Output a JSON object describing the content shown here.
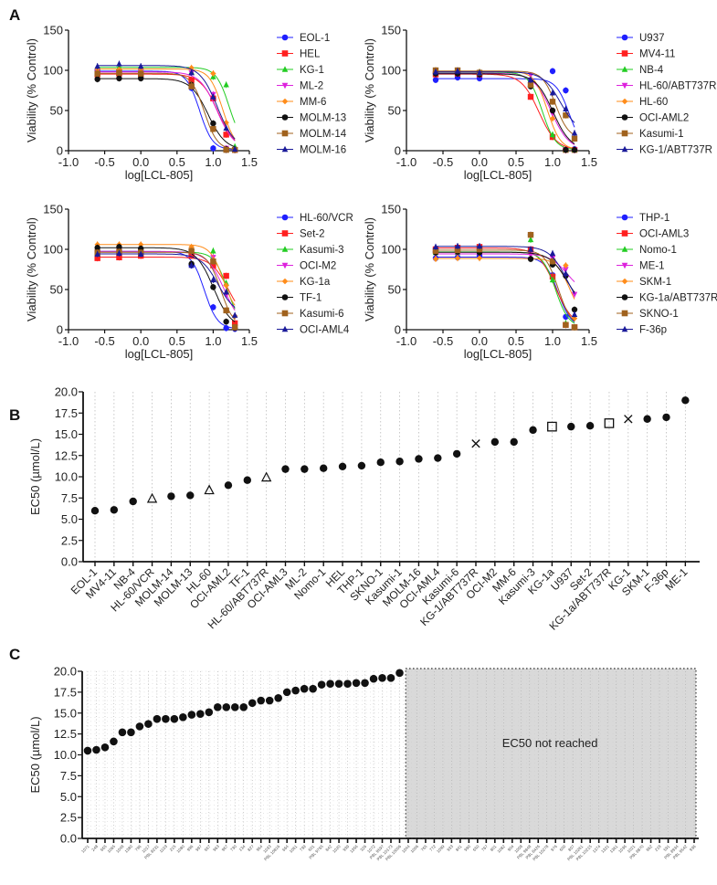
{
  "chart_data": [
    {
      "panel": "A",
      "type": "line",
      "subtype": "dose-response",
      "xlabel": "log[LCL-805]",
      "ylabel": "Viability (% Control)",
      "xlim": [
        -1.0,
        1.5
      ],
      "ylim": [
        0,
        150
      ],
      "xticks": [
        "-1.0",
        "-0.5",
        "0.0",
        "0.5",
        "1.0",
        "1.5"
      ],
      "yticks": [
        "0",
        "50",
        "100",
        "150"
      ],
      "x": [
        -0.6,
        -0.3,
        0.0,
        0.7,
        1.0,
        1.18,
        1.3
      ],
      "legend_position": "right",
      "series": [
        {
          "name": "EOL-1",
          "color": "#1f1fff",
          "marker": "circle",
          "values": [
            100,
            100,
            97,
            78,
            3,
            1,
            1
          ]
        },
        {
          "name": "HEL",
          "color": "#ff1f1f",
          "marker": "square",
          "values": [
            95,
            96,
            95,
            88,
            65,
            20,
            1
          ]
        },
        {
          "name": "KG-1",
          "color": "#22cc22",
          "marker": "triangle",
          "values": [
            104,
            104,
            103,
            98,
            92,
            82,
            5
          ]
        },
        {
          "name": "ML-2",
          "color": "#dd22dd",
          "marker": "triangle-down",
          "values": [
            98,
            98,
            98,
            97,
            70,
            3,
            1
          ]
        },
        {
          "name": "MM-6",
          "color": "#ff8c1a",
          "marker": "diamond",
          "values": [
            102,
            101,
            102,
            103,
            96,
            35,
            1
          ]
        },
        {
          "name": "MOLM-13",
          "color": "#111111",
          "marker": "circle",
          "values": [
            89,
            90,
            90,
            82,
            34,
            2,
            1
          ]
        },
        {
          "name": "MOLM-14",
          "color": "#a0621e",
          "marker": "square",
          "values": [
            96,
            97,
            96,
            80,
            27,
            1,
            1
          ]
        },
        {
          "name": "MOLM-16",
          "color": "#1a1a99",
          "marker": "triangle",
          "values": [
            105,
            108,
            105,
            97,
            67,
            28,
            2
          ]
        }
      ]
    },
    {
      "panel": "A2",
      "type": "line",
      "subtype": "dose-response",
      "xlabel": "log[LCL-805]",
      "ylabel": "Viability (% Control)",
      "xlim": [
        -1.0,
        1.5
      ],
      "ylim": [
        0,
        150
      ],
      "xticks": [
        "-1.0",
        "-0.5",
        "0.0",
        "0.5",
        "1.0",
        "1.5"
      ],
      "yticks": [
        "0",
        "50",
        "100",
        "150"
      ],
      "x": [
        -0.6,
        -0.3,
        0.0,
        0.7,
        1.0,
        1.18,
        1.3
      ],
      "legend_position": "right",
      "series": [
        {
          "name": "U937",
          "color": "#1f1fff",
          "marker": "circle",
          "values": [
            88,
            91,
            90,
            88,
            99,
            75,
            2
          ]
        },
        {
          "name": "MV4-11",
          "color": "#ff1f1f",
          "marker": "square",
          "values": [
            95,
            96,
            95,
            67,
            17,
            1,
            1
          ]
        },
        {
          "name": "NB-4",
          "color": "#22cc22",
          "marker": "triangle",
          "values": [
            97,
            98,
            98,
            82,
            20,
            1,
            1
          ]
        },
        {
          "name": "HL-60/ABT737R",
          "color": "#dd22dd",
          "marker": "triangle-down",
          "values": [
            96,
            97,
            96,
            94,
            46,
            1,
            1
          ]
        },
        {
          "name": "HL-60",
          "color": "#ff8c1a",
          "marker": "diamond",
          "values": [
            100,
            99,
            98,
            83,
            40,
            1,
            1
          ]
        },
        {
          "name": "OCI-AML2",
          "color": "#111111",
          "marker": "circle",
          "values": [
            96,
            96,
            95,
            80,
            50,
            1,
            1
          ]
        },
        {
          "name": "Kasumi-1",
          "color": "#a0621e",
          "marker": "square",
          "values": [
            100,
            100,
            97,
            82,
            61,
            44,
            15
          ]
        },
        {
          "name": "KG-1/ABT737R",
          "color": "#1a1a99",
          "marker": "triangle",
          "values": [
            98,
            99,
            97,
            88,
            72,
            52,
            22
          ]
        }
      ]
    },
    {
      "panel": "A3",
      "type": "line",
      "subtype": "dose-response",
      "xlabel": "log[LCL-805]",
      "ylabel": "Viability (% Control)",
      "xlim": [
        -1.0,
        1.5
      ],
      "ylim": [
        0,
        150
      ],
      "xticks": [
        "-1.0",
        "-0.5",
        "0.0",
        "0.5",
        "1.0",
        "1.5"
      ],
      "yticks": [
        "0",
        "50",
        "100",
        "150"
      ],
      "x": [
        -0.6,
        -0.3,
        0.0,
        0.7,
        1.0,
        1.18,
        1.3
      ],
      "legend_position": "right",
      "series": [
        {
          "name": "HL-60/VCR",
          "color": "#1f1fff",
          "marker": "circle",
          "values": [
            98,
            97,
            97,
            80,
            28,
            2,
            1
          ]
        },
        {
          "name": "Set-2",
          "color": "#ff1f1f",
          "marker": "square",
          "values": [
            89,
            90,
            92,
            92,
            80,
            67,
            8
          ]
        },
        {
          "name": "Kasumi-3",
          "color": "#22cc22",
          "marker": "triangle",
          "values": [
            95,
            97,
            98,
            102,
            98,
            58,
            3
          ]
        },
        {
          "name": "OCI-M2",
          "color": "#dd22dd",
          "marker": "triangle-down",
          "values": [
            97,
            98,
            97,
            97,
            90,
            43,
            2
          ]
        },
        {
          "name": "KG-1a",
          "color": "#ff8c1a",
          "marker": "diamond",
          "values": [
            106,
            106,
            106,
            103,
            86,
            55,
            17
          ]
        },
        {
          "name": "TF-1",
          "color": "#111111",
          "marker": "circle",
          "values": [
            102,
            103,
            101,
            82,
            53,
            10,
            2
          ]
        },
        {
          "name": "Kasumi-6",
          "color": "#a0621e",
          "marker": "square",
          "values": [
            96,
            97,
            96,
            98,
            85,
            24,
            3
          ]
        },
        {
          "name": "OCI-AML4",
          "color": "#1a1a99",
          "marker": "triangle",
          "values": [
            94,
            95,
            94,
            80,
            62,
            47,
            18
          ]
        }
      ]
    },
    {
      "panel": "A4",
      "type": "line",
      "subtype": "dose-response",
      "xlabel": "log[LCL-805]",
      "ylabel": "Viability (% Control)",
      "xlim": [
        -1.0,
        1.5
      ],
      "ylim": [
        0,
        150
      ],
      "xticks": [
        "-1.0",
        "-0.5",
        "0.0",
        "0.5",
        "1.0",
        "1.5"
      ],
      "yticks": [
        "0",
        "50",
        "100",
        "150"
      ],
      "x": [
        -0.6,
        -0.3,
        0.0,
        0.7,
        1.0,
        1.18,
        1.3
      ],
      "legend_position": "right",
      "series": [
        {
          "name": "THP-1",
          "color": "#1f1fff",
          "marker": "circle",
          "values": [
            89,
            90,
            92,
            118,
            68,
            16,
            3
          ]
        },
        {
          "name": "OCI-AML3",
          "color": "#ff1f1f",
          "marker": "square",
          "values": [
            100,
            102,
            103,
            100,
            66,
            6,
            3
          ]
        },
        {
          "name": "Nomo-1",
          "color": "#22cc22",
          "marker": "triangle",
          "values": [
            96,
            96,
            98,
            112,
            62,
            8,
            3
          ]
        },
        {
          "name": "ME-1",
          "color": "#dd22dd",
          "marker": "triangle-down",
          "values": [
            94,
            95,
            94,
            93,
            89,
            75,
            44
          ]
        },
        {
          "name": "SKM-1",
          "color": "#ff8c1a",
          "marker": "diamond",
          "values": [
            88,
            89,
            89,
            88,
            85,
            80,
            14
          ]
        },
        {
          "name": "KG-1a/ABT737R",
          "color": "#111111",
          "marker": "circle",
          "values": [
            96,
            97,
            96,
            88,
            81,
            67,
            25
          ]
        },
        {
          "name": "SKNO-1",
          "color": "#a0621e",
          "marker": "square",
          "values": [
            98,
            99,
            100,
            118,
            85,
            6,
            3
          ]
        },
        {
          "name": "F-36p",
          "color": "#1a1a99",
          "marker": "triangle",
          "values": [
            103,
            104,
            104,
            100,
            95,
            70,
            19
          ]
        }
      ]
    },
    {
      "panel": "B",
      "type": "scatter",
      "ylabel": "EC50 (µmol/L)",
      "xlabel": "",
      "ylim": [
        0,
        20
      ],
      "yticks": [
        "0.0",
        "2.5",
        "5.0",
        "7.5",
        "10.0",
        "12.5",
        "15.0",
        "17.5",
        "20.0"
      ],
      "grid": "vertical-dotted",
      "categories": [
        "EOL-1",
        "MV4-11",
        "NB-4",
        "HL-60/VCR",
        "MOLM-14",
        "MOLM-13",
        "HL-60",
        "OCI-AML2",
        "TF-1",
        "HL-60/ABT737R",
        "OCI-AML3",
        "ML-2",
        "Nomo-1",
        "HEL",
        "THP-1",
        "SKNO-1",
        "Kasumi-1",
        "MOLM-16",
        "OCI-AML4",
        "Kasumi-6",
        "KG-1/ABT737R",
        "OCI-M2",
        "MM-6",
        "Kasumi-3",
        "KG-1a",
        "U937",
        "Set-2",
        "KG-1a/ABT737R",
        "KG-1",
        "SKM-1",
        "F-36p",
        "ME-1"
      ],
      "values": [
        6.0,
        6.1,
        7.1,
        7.4,
        7.7,
        7.8,
        8.4,
        9.0,
        9.6,
        9.9,
        10.9,
        10.9,
        11.0,
        11.2,
        11.3,
        11.7,
        11.8,
        12.1,
        12.2,
        12.7,
        13.9,
        14.1,
        14.1,
        15.5,
        15.9,
        15.9,
        16.0,
        16.3,
        16.8,
        16.8,
        17.0,
        19.0
      ],
      "markers": [
        "circle",
        "circle",
        "circle",
        "triangle-open",
        "circle",
        "circle",
        "triangle-open",
        "circle",
        "circle",
        "triangle-open",
        "circle",
        "circle",
        "circle",
        "circle",
        "circle",
        "circle",
        "circle",
        "circle",
        "circle",
        "circle",
        "cross",
        "circle",
        "circle",
        "circle",
        "square-open",
        "circle",
        "circle",
        "square-open",
        "cross",
        "circle",
        "circle",
        "circle"
      ]
    },
    {
      "panel": "C",
      "type": "scatter",
      "ylabel": "EC50 (µmol/L)",
      "xlabel": "",
      "ylim": [
        0,
        20
      ],
      "yticks": [
        "0.0",
        "2.5",
        "5.0",
        "7.5",
        "10.0",
        "12.5",
        "15.0",
        "17.5",
        "20.0"
      ],
      "grid": "dotted",
      "categories": [
        "1071",
        "248",
        "665",
        "1065",
        "1048",
        "1380",
        "796",
        "1017",
        "PBL 8231",
        "1103",
        "215",
        "1080",
        "996",
        "997",
        "667",
        "963",
        "967",
        "730",
        "134",
        "827",
        "964",
        "1033",
        "PBL 10816",
        "664",
        "1061",
        "739",
        "601",
        "PBL 9765",
        "842",
        "1020",
        "939",
        "1356",
        "326",
        "1072",
        "PBL 9597",
        "PBL 10173",
        "PBL 10006",
        "1044",
        "1006",
        "765",
        "772",
        "1099",
        "933",
        "841",
        "990",
        "650",
        "767",
        "801",
        "1082",
        "904",
        "1008",
        "PBL 9848",
        "PBL 8426",
        "PBL 10278",
        "976",
        "600",
        "807",
        "PBL 10261",
        "PBL 10215",
        "1374",
        "1321",
        "1361",
        "1036",
        "1021",
        "PBL 8870",
        "862",
        "218",
        "591",
        "PBL 8934",
        "PBL 9542",
        "936"
      ],
      "values": [
        10.5,
        10.6,
        10.9,
        11.6,
        12.7,
        12.7,
        13.4,
        13.7,
        14.3,
        14.3,
        14.3,
        14.5,
        14.8,
        14.9,
        15.1,
        15.7,
        15.7,
        15.7,
        15.7,
        16.2,
        16.5,
        16.5,
        16.8,
        17.5,
        17.7,
        17.9,
        17.9,
        18.4,
        18.5,
        18.5,
        18.5,
        18.6,
        18.6,
        19.1,
        19.2,
        19.2,
        19.8,
        null,
        null,
        null,
        null,
        null,
        null,
        null,
        null,
        null,
        null,
        null,
        null,
        null,
        null,
        null,
        null,
        null,
        null,
        null,
        null,
        null,
        null,
        null,
        null,
        null,
        null,
        null,
        null,
        null,
        null,
        null,
        null,
        null,
        null
      ],
      "annotation": "EC50 not reached"
    }
  ],
  "panels": {
    "a_label": "A",
    "b_label": "B",
    "c_label": "C"
  }
}
